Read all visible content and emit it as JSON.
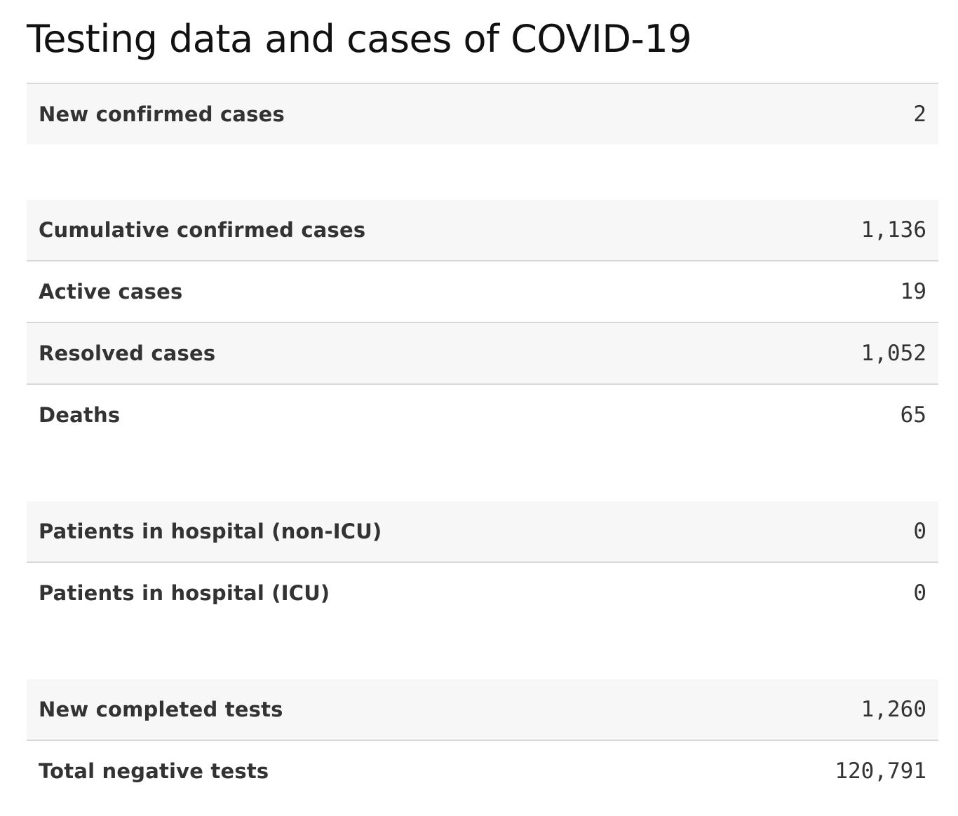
{
  "title": "Testing data and cases of COVID-19",
  "sections": [
    {
      "rows": [
        {
          "label": "New confirmed cases",
          "value": "2"
        }
      ]
    },
    {
      "rows": [
        {
          "label": "Cumulative confirmed cases",
          "value": "1,136"
        },
        {
          "label": "Active cases",
          "value": "19"
        },
        {
          "label": "Resolved cases",
          "value": "1,052"
        },
        {
          "label": "Deaths",
          "value": "65"
        }
      ]
    },
    {
      "rows": [
        {
          "label": "Patients in hospital (non-ICU)",
          "value": "0"
        },
        {
          "label": "Patients in hospital (ICU)",
          "value": "0"
        }
      ]
    },
    {
      "rows": [
        {
          "label": "New completed tests",
          "value": "1,260"
        },
        {
          "label": "Total negative tests",
          "value": "120,791"
        }
      ]
    }
  ],
  "colors": {
    "row_shade": "#f7f7f7",
    "border": "#d8d8d8",
    "text": "#333333",
    "title": "#111111"
  }
}
